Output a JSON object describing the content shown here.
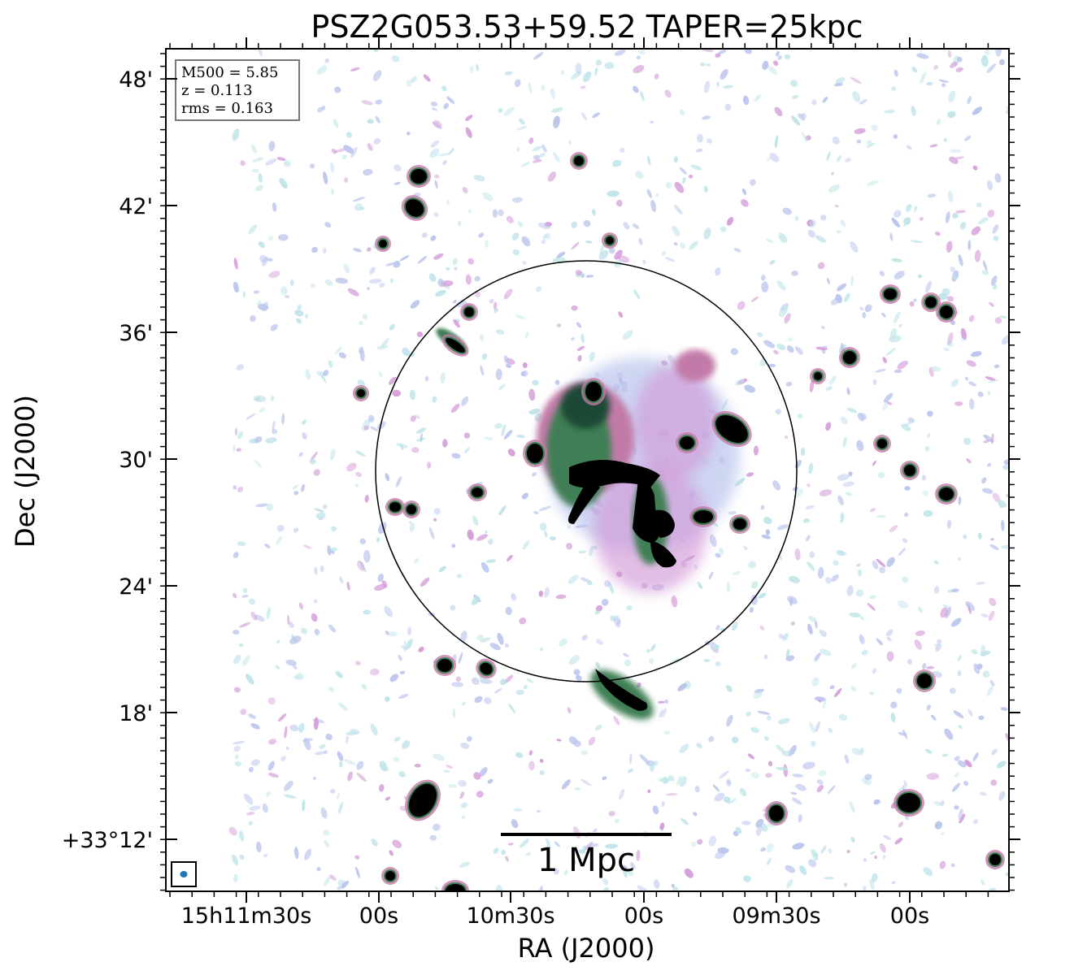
{
  "figure": {
    "title": "PSZ2G053.53+59.52 TAPER=25kpc",
    "xlabel": "RA (J2000)",
    "ylabel": "Dec (J2000)",
    "info_box": [
      "M500 = 5.85",
      "z = 0.113",
      "rms = 0.163"
    ],
    "scale_bar_label": "1 Mpc",
    "dec_tick_labels": [
      "48'",
      "42'",
      "36'",
      "30'",
      "24'",
      "18'",
      "+33°12'"
    ],
    "ra_tick_labels": [
      "15h11m30s",
      "00s",
      "10m30s",
      "00s",
      "09m30s",
      "00s"
    ]
  },
  "colors": {
    "faint_blue": "#b9c4ec",
    "faint_cyan": "#bfe4ea",
    "pink": "#d39ad8",
    "mauve": "#c27aa8",
    "green": "#3f7f55",
    "dark_green": "#1f4a35",
    "core": "#000000",
    "beam": "#1f77b4"
  },
  "icons": [
    "beam-ellipse-icon"
  ]
}
